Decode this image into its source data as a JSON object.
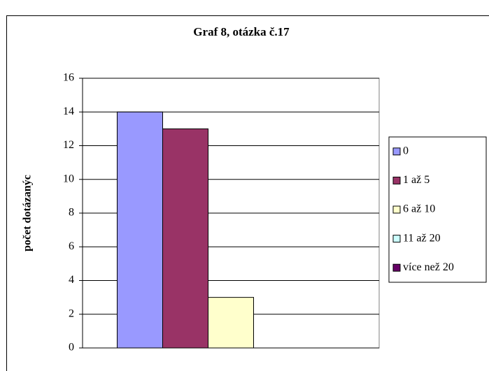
{
  "chart_data": {
    "type": "bar",
    "title": "Graf 8, otázka č.17",
    "y_label": "počet dotázanýc",
    "categories": [
      null
    ],
    "series": [
      {
        "name": "0",
        "color": "#9999ff",
        "values": [
          14
        ]
      },
      {
        "name": "1 až 5",
        "color": "#993366",
        "values": [
          13
        ]
      },
      {
        "name": "6 až 10",
        "color": "#ffffcc",
        "values": [
          3
        ]
      },
      {
        "name": "11 až 20",
        "color": "#ccffff",
        "values": [
          0
        ]
      },
      {
        "name": "více než 20",
        "color": "#660066",
        "values": [
          0
        ]
      }
    ],
    "ylim": [
      0,
      16
    ],
    "yticks": [
      0,
      2,
      4,
      6,
      8,
      10,
      12,
      14,
      16
    ],
    "grid": true,
    "legend": "right"
  }
}
